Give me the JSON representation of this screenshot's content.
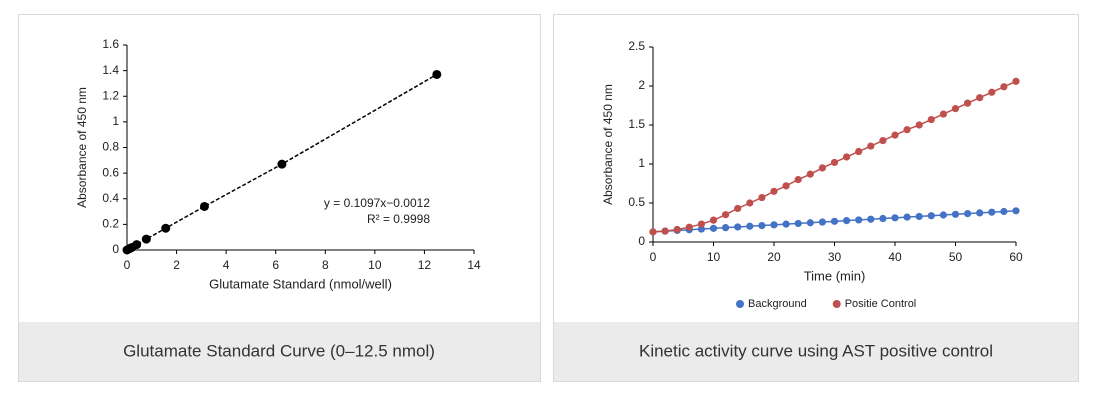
{
  "chart_data": [
    {
      "type": "scatter",
      "caption": "Glutamate Standard Curve (0–12.5 nmol)",
      "xlabel": "Glutamate Standard (nmol/well)",
      "ylabel": "Absorbance of 450 nm",
      "x": [
        0,
        0.098,
        0.195,
        0.39,
        0.78,
        1.5625,
        3.125,
        6.25,
        12.5
      ],
      "values": [
        0,
        0.01,
        0.02,
        0.042,
        0.085,
        0.17,
        0.34,
        0.67,
        1.37
      ],
      "color": "#000000",
      "trendline": true,
      "annotations": [
        "y = 0.1097x−0.0012",
        "R² = 0.9998"
      ],
      "xlim": [
        0,
        14
      ],
      "xticks": [
        0,
        2,
        4,
        6,
        8,
        10,
        12,
        14
      ],
      "ylim": [
        0,
        1.6
      ],
      "yticks": [
        0,
        0.2,
        0.4,
        0.6,
        0.8,
        1,
        1.2,
        1.4,
        1.6
      ],
      "grid": false
    },
    {
      "type": "line",
      "caption": "Kinetic activity curve using AST positive control",
      "xlabel": "Time (min)",
      "ylabel": "Absorbance of 450 nm",
      "x": [
        0,
        2,
        4,
        6,
        8,
        10,
        12,
        14,
        16,
        18,
        20,
        22,
        24,
        26,
        28,
        30,
        32,
        34,
        36,
        38,
        40,
        42,
        44,
        46,
        48,
        50,
        52,
        54,
        56,
        58,
        60
      ],
      "series": [
        {
          "name": "Background",
          "color": "#4472c4",
          "values": [
            0.13,
            0.139,
            0.148,
            0.157,
            0.166,
            0.175,
            0.184,
            0.193,
            0.202,
            0.211,
            0.22,
            0.229,
            0.238,
            0.247,
            0.256,
            0.265,
            0.274,
            0.283,
            0.292,
            0.301,
            0.31,
            0.319,
            0.328,
            0.337,
            0.346,
            0.355,
            0.364,
            0.373,
            0.382,
            0.391,
            0.4
          ]
        },
        {
          "name": "Positie Control",
          "color": "#c0504d",
          "values": [
            0.13,
            0.14,
            0.16,
            0.19,
            0.23,
            0.28,
            0.35,
            0.43,
            0.5,
            0.57,
            0.65,
            0.72,
            0.8,
            0.87,
            0.95,
            1.02,
            1.09,
            1.16,
            1.23,
            1.3,
            1.37,
            1.44,
            1.5,
            1.57,
            1.64,
            1.71,
            1.78,
            1.85,
            1.92,
            1.99,
            2.06
          ]
        }
      ],
      "legend": "bottom",
      "xlim": [
        0,
        60
      ],
      "xticks": [
        0,
        10,
        20,
        30,
        40,
        50,
        60
      ],
      "ylim": [
        0,
        2.5
      ],
      "yticks": [
        0,
        0.5,
        1,
        1.5,
        2,
        2.5
      ],
      "grid": false
    }
  ]
}
